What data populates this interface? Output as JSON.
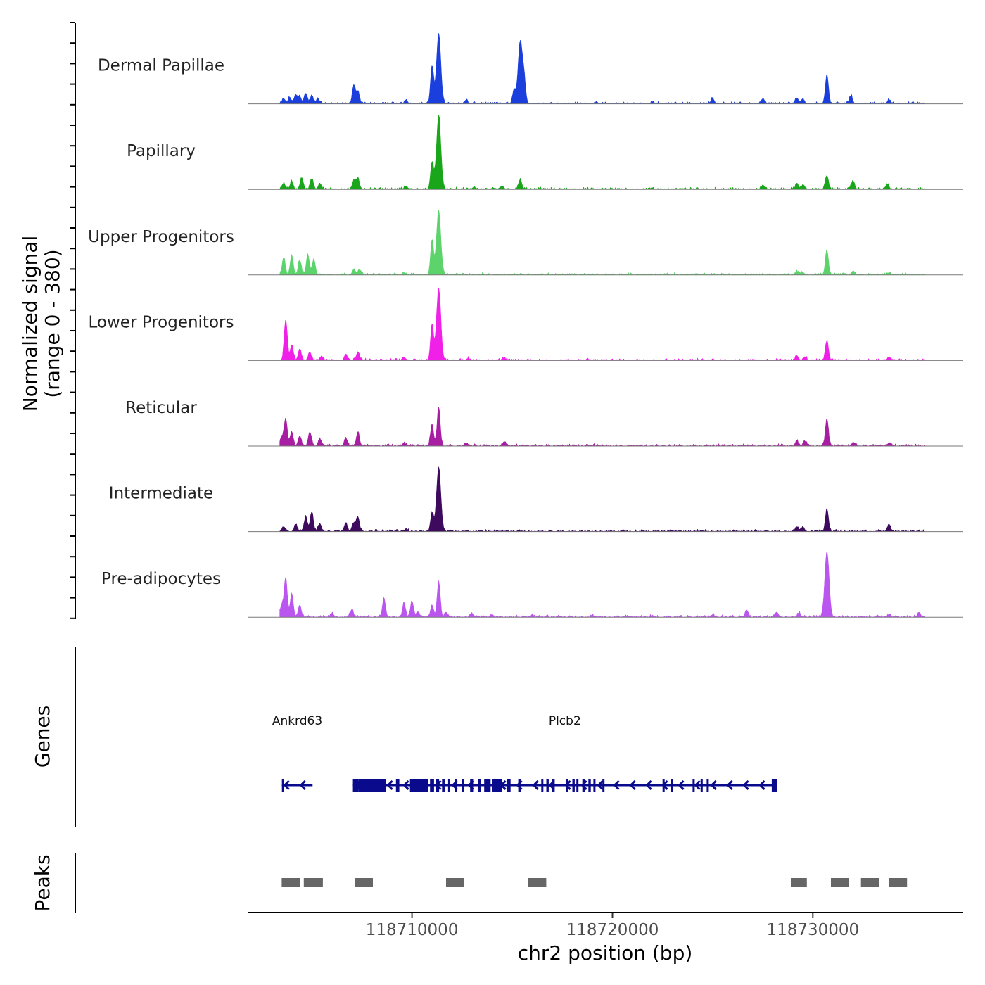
{
  "chart_data": {
    "type": "area",
    "title": "",
    "y_axis": {
      "label_line1": "Normalized signal",
      "label_line2": "(range 0 - 380)",
      "range": [
        0,
        380
      ]
    },
    "x_axis": {
      "label": "chr2 position (bp)",
      "range": [
        118701800,
        118737500
      ],
      "ticks": [
        118710000,
        118720000,
        118730000
      ],
      "tick_labels": [
        "118710000",
        "118720000",
        "118730000"
      ]
    },
    "tracks": [
      {
        "name": "Dermal Papillae",
        "color": "#1a3fdc",
        "peaks": [
          [
            118703600,
            25
          ],
          [
            118703900,
            32
          ],
          [
            118704200,
            45
          ],
          [
            118704400,
            38
          ],
          [
            118704700,
            53
          ],
          [
            118705000,
            40
          ],
          [
            118705300,
            28
          ],
          [
            118707100,
            95
          ],
          [
            118707300,
            60
          ],
          [
            118709700,
            20
          ],
          [
            118711000,
            190
          ],
          [
            118711330,
            360
          ],
          [
            118712700,
            18
          ],
          [
            118715100,
            70
          ],
          [
            118715400,
            320
          ],
          [
            118715600,
            110
          ],
          [
            118722000,
            10
          ],
          [
            118725000,
            28
          ],
          [
            118727500,
            25
          ],
          [
            118729200,
            30
          ],
          [
            118729500,
            25
          ],
          [
            118730700,
            150
          ],
          [
            118731900,
            40
          ],
          [
            118733800,
            20
          ]
        ]
      },
      {
        "name": "Papillary",
        "color": "#1aa61a",
        "peaks": [
          [
            118703600,
            30
          ],
          [
            118704000,
            40
          ],
          [
            118704500,
            60
          ],
          [
            118705000,
            55
          ],
          [
            118705400,
            30
          ],
          [
            118707100,
            45
          ],
          [
            118707300,
            55
          ],
          [
            118709700,
            15
          ],
          [
            118711000,
            140
          ],
          [
            118711330,
            380
          ],
          [
            118713100,
            10
          ],
          [
            118714500,
            15
          ],
          [
            118715400,
            50
          ],
          [
            118727500,
            18
          ],
          [
            118729200,
            28
          ],
          [
            118729500,
            22
          ],
          [
            118730700,
            70
          ],
          [
            118732000,
            45
          ],
          [
            118733700,
            25
          ]
        ]
      },
      {
        "name": "Upper Progenitors",
        "color": "#5cd46b",
        "peaks": [
          [
            118703600,
            90
          ],
          [
            118704000,
            100
          ],
          [
            118704400,
            75
          ],
          [
            118704800,
            105
          ],
          [
            118705100,
            80
          ],
          [
            118707100,
            30
          ],
          [
            118707400,
            25
          ],
          [
            118709600,
            12
          ],
          [
            118711000,
            175
          ],
          [
            118711330,
            330
          ],
          [
            118729200,
            18
          ],
          [
            118729500,
            12
          ],
          [
            118730700,
            125
          ],
          [
            118732000,
            20
          ],
          [
            118733800,
            10
          ]
        ]
      },
      {
        "name": "Lower Progenitors",
        "color": "#f020e8",
        "peaks": [
          [
            118703700,
            210
          ],
          [
            118704000,
            80
          ],
          [
            118704400,
            60
          ],
          [
            118704900,
            40
          ],
          [
            118705500,
            20
          ],
          [
            118706700,
            30
          ],
          [
            118707300,
            40
          ],
          [
            118709600,
            15
          ],
          [
            118711000,
            180
          ],
          [
            118711330,
            370
          ],
          [
            118712800,
            10
          ],
          [
            118714600,
            12
          ],
          [
            118729200,
            22
          ],
          [
            118729600,
            18
          ],
          [
            118730700,
            100
          ],
          [
            118733800,
            18
          ]
        ]
      },
      {
        "name": "Reticular",
        "color": "#a81ea2",
        "peaks": [
          [
            118703500,
            45
          ],
          [
            118703700,
            140
          ],
          [
            118704000,
            70
          ],
          [
            118704400,
            50
          ],
          [
            118704900,
            70
          ],
          [
            118705400,
            35
          ],
          [
            118706700,
            40
          ],
          [
            118707300,
            70
          ],
          [
            118709600,
            15
          ],
          [
            118711000,
            110
          ],
          [
            118711330,
            200
          ],
          [
            118712700,
            15
          ],
          [
            118714600,
            20
          ],
          [
            118729200,
            25
          ],
          [
            118729600,
            25
          ],
          [
            118730700,
            140
          ],
          [
            118732000,
            15
          ],
          [
            118733800,
            15
          ]
        ]
      },
      {
        "name": "Intermediate",
        "color": "#3d0a5e",
        "peaks": [
          [
            118703600,
            25
          ],
          [
            118704200,
            35
          ],
          [
            118704700,
            75
          ],
          [
            118705000,
            100
          ],
          [
            118705400,
            40
          ],
          [
            118706700,
            45
          ],
          [
            118707100,
            45
          ],
          [
            118707300,
            75
          ],
          [
            118709700,
            12
          ],
          [
            118711000,
            95
          ],
          [
            118711330,
            330
          ],
          [
            118729200,
            25
          ],
          [
            118729500,
            25
          ],
          [
            118730700,
            115
          ],
          [
            118733800,
            35
          ]
        ]
      },
      {
        "name": "Pre-adipocytes",
        "color": "#bb55f0",
        "peaks": [
          [
            118703500,
            60
          ],
          [
            118703700,
            200
          ],
          [
            118704000,
            120
          ],
          [
            118704400,
            60
          ],
          [
            118706000,
            20
          ],
          [
            118707000,
            40
          ],
          [
            118708600,
            95
          ],
          [
            118709600,
            70
          ],
          [
            118710000,
            80
          ],
          [
            118710300,
            25
          ],
          [
            118711000,
            60
          ],
          [
            118711330,
            180
          ],
          [
            118711700,
            25
          ],
          [
            118713000,
            15
          ],
          [
            118714000,
            12
          ],
          [
            118716000,
            10
          ],
          [
            118719000,
            10
          ],
          [
            118722000,
            8
          ],
          [
            118725000,
            10
          ],
          [
            118726700,
            35
          ],
          [
            118728200,
            25
          ],
          [
            118729300,
            20
          ],
          [
            118730700,
            335
          ],
          [
            118733800,
            12
          ],
          [
            118735300,
            25
          ]
        ]
      }
    ],
    "genes": [
      {
        "name": "Ankrd63",
        "strand": "-",
        "start": 118703510,
        "end": 118705040,
        "exons": [
          [
            118703510,
            118703580
          ]
        ]
      },
      {
        "name": "Plcb2",
        "strand": "-",
        "start": 118707050,
        "end": 118728200,
        "exons": [
          [
            118707050,
            118707320
          ],
          [
            118707320,
            118708700
          ],
          [
            118709200,
            118709370
          ],
          [
            118709900,
            118710260
          ],
          [
            118710260,
            118710800
          ],
          [
            118710900,
            118711100
          ],
          [
            118711200,
            118711350
          ],
          [
            118711500,
            118711650
          ],
          [
            118711800,
            118711900
          ],
          [
            118712150,
            118712250
          ],
          [
            118712500,
            118712600
          ],
          [
            118712900,
            118713050
          ],
          [
            118713300,
            118713450
          ],
          [
            118713600,
            118713920
          ],
          [
            118714000,
            118714500
          ],
          [
            118714750,
            118714920
          ],
          [
            118715300,
            118715450
          ],
          [
            118716450,
            118716550
          ],
          [
            118716700,
            118716820
          ],
          [
            118717000,
            118717120
          ],
          [
            118717700,
            118717800
          ],
          [
            118718000,
            118718120
          ],
          [
            118718200,
            118718300
          ],
          [
            118718500,
            118718620
          ],
          [
            118718800,
            118718920
          ],
          [
            118719050,
            118719150
          ],
          [
            118719500,
            118719600
          ],
          [
            118722500,
            118722600
          ],
          [
            118722900,
            118723000
          ],
          [
            118724000,
            118724100
          ],
          [
            118724400,
            118724500
          ],
          [
            118724700,
            118724800
          ],
          [
            118727950,
            118728200
          ]
        ]
      }
    ],
    "peak_regions": [
      [
        118703500,
        118704400
      ],
      [
        118704600,
        118705550
      ],
      [
        118707150,
        118708050
      ],
      [
        118711700,
        118712600
      ],
      [
        118715800,
        118716700
      ],
      [
        118728900,
        118729700
      ],
      [
        118730900,
        118731800
      ],
      [
        118732400,
        118733300
      ],
      [
        118733800,
        118734700
      ]
    ],
    "panel_labels": {
      "genes": "Genes",
      "peaks": "Peaks"
    }
  }
}
